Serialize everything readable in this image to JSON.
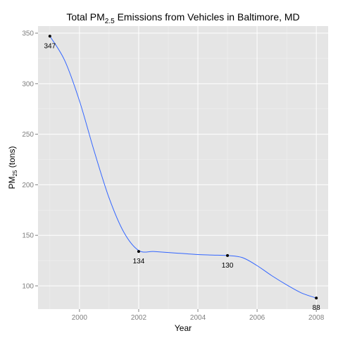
{
  "chart_data": {
    "type": "line",
    "title_prefix": "Total PM",
    "title_subscript": "2.5",
    "title_suffix": " Emissions from Vehicles in Baltimore, MD",
    "xlabel": "Year",
    "ylabel_prefix": "PM",
    "ylabel_subscript": "25",
    "ylabel_suffix": " (tons)",
    "xlim": [
      1998.6,
      2008.4
    ],
    "ylim": [
      77,
      357
    ],
    "xticks": [
      2000,
      2002,
      2004,
      2006,
      2008
    ],
    "xtick_labels": [
      "2000",
      "2002",
      "2004",
      "2006",
      "2008"
    ],
    "yticks": [
      100,
      150,
      200,
      250,
      300,
      350
    ],
    "ytick_labels": [
      "100",
      "150",
      "200",
      "250",
      "300",
      "350"
    ],
    "points": {
      "x": [
        1999,
        2002,
        2005,
        2008
      ],
      "y": [
        347,
        134,
        130,
        88
      ],
      "labels": [
        "347",
        "134",
        "130",
        "88"
      ]
    },
    "smooth_line": {
      "x": [
        1999,
        1999.5,
        2000,
        2000.5,
        2001,
        2001.5,
        2002,
        2002.5,
        2003,
        2003.5,
        2004,
        2004.5,
        2005,
        2005.5,
        2006,
        2006.5,
        2007,
        2007.5,
        2008
      ],
      "y": [
        347,
        323,
        283,
        233,
        187,
        153,
        135,
        134,
        133,
        132,
        131,
        130.5,
        130,
        128,
        120,
        110,
        101,
        93,
        88
      ]
    },
    "grid": true,
    "colors": {
      "panel_background": "#e5e5e5",
      "grid_major": "#ffffff",
      "grid_minor": "#f2f2f2",
      "line": "#3366ff",
      "point": "#000000",
      "tick_text": "#7f7f7f"
    }
  }
}
